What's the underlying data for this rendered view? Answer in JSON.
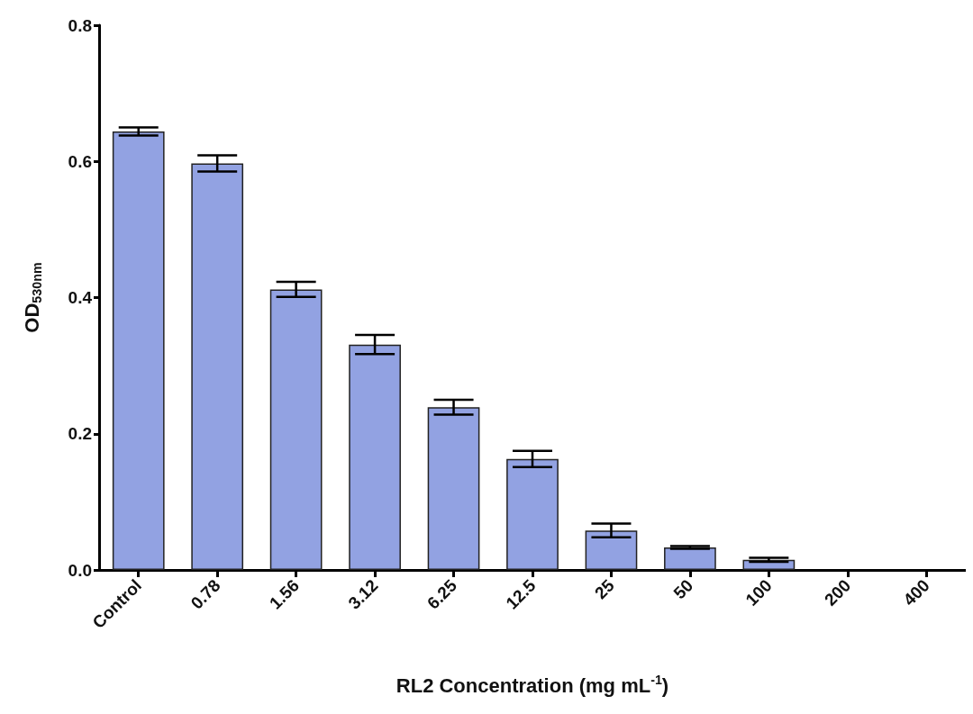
{
  "chart_data": {
    "type": "bar",
    "xlabel": "RL2 Concentration (mg mL$^{-1}$)",
    "ylabel": "OD$_{530nm}$",
    "categories": [
      "Control",
      "0.78",
      "1.56",
      "3.12",
      "6.25",
      "12.5",
      "25",
      "50",
      "100",
      "200",
      "400"
    ],
    "values": [
      0.644,
      0.597,
      0.412,
      0.331,
      0.239,
      0.163,
      0.058,
      0.033,
      0.015,
      0,
      0
    ],
    "errors": [
      0.006,
      0.012,
      0.011,
      0.014,
      0.011,
      0.012,
      0.01,
      0.002,
      0.003,
      null,
      null
    ],
    "color": "#92a2e2",
    "ylim": [
      0,
      0.8
    ],
    "yticks": [
      {
        "value": 0,
        "label": "0.0"
      },
      {
        "value": 0.2,
        "label": "0.2"
      },
      {
        "value": 0.4,
        "label": "0.4"
      },
      {
        "value": 0.6,
        "label": "0.6"
      },
      {
        "value": 0.8,
        "label": "0.8"
      }
    ],
    "grid": false
  }
}
